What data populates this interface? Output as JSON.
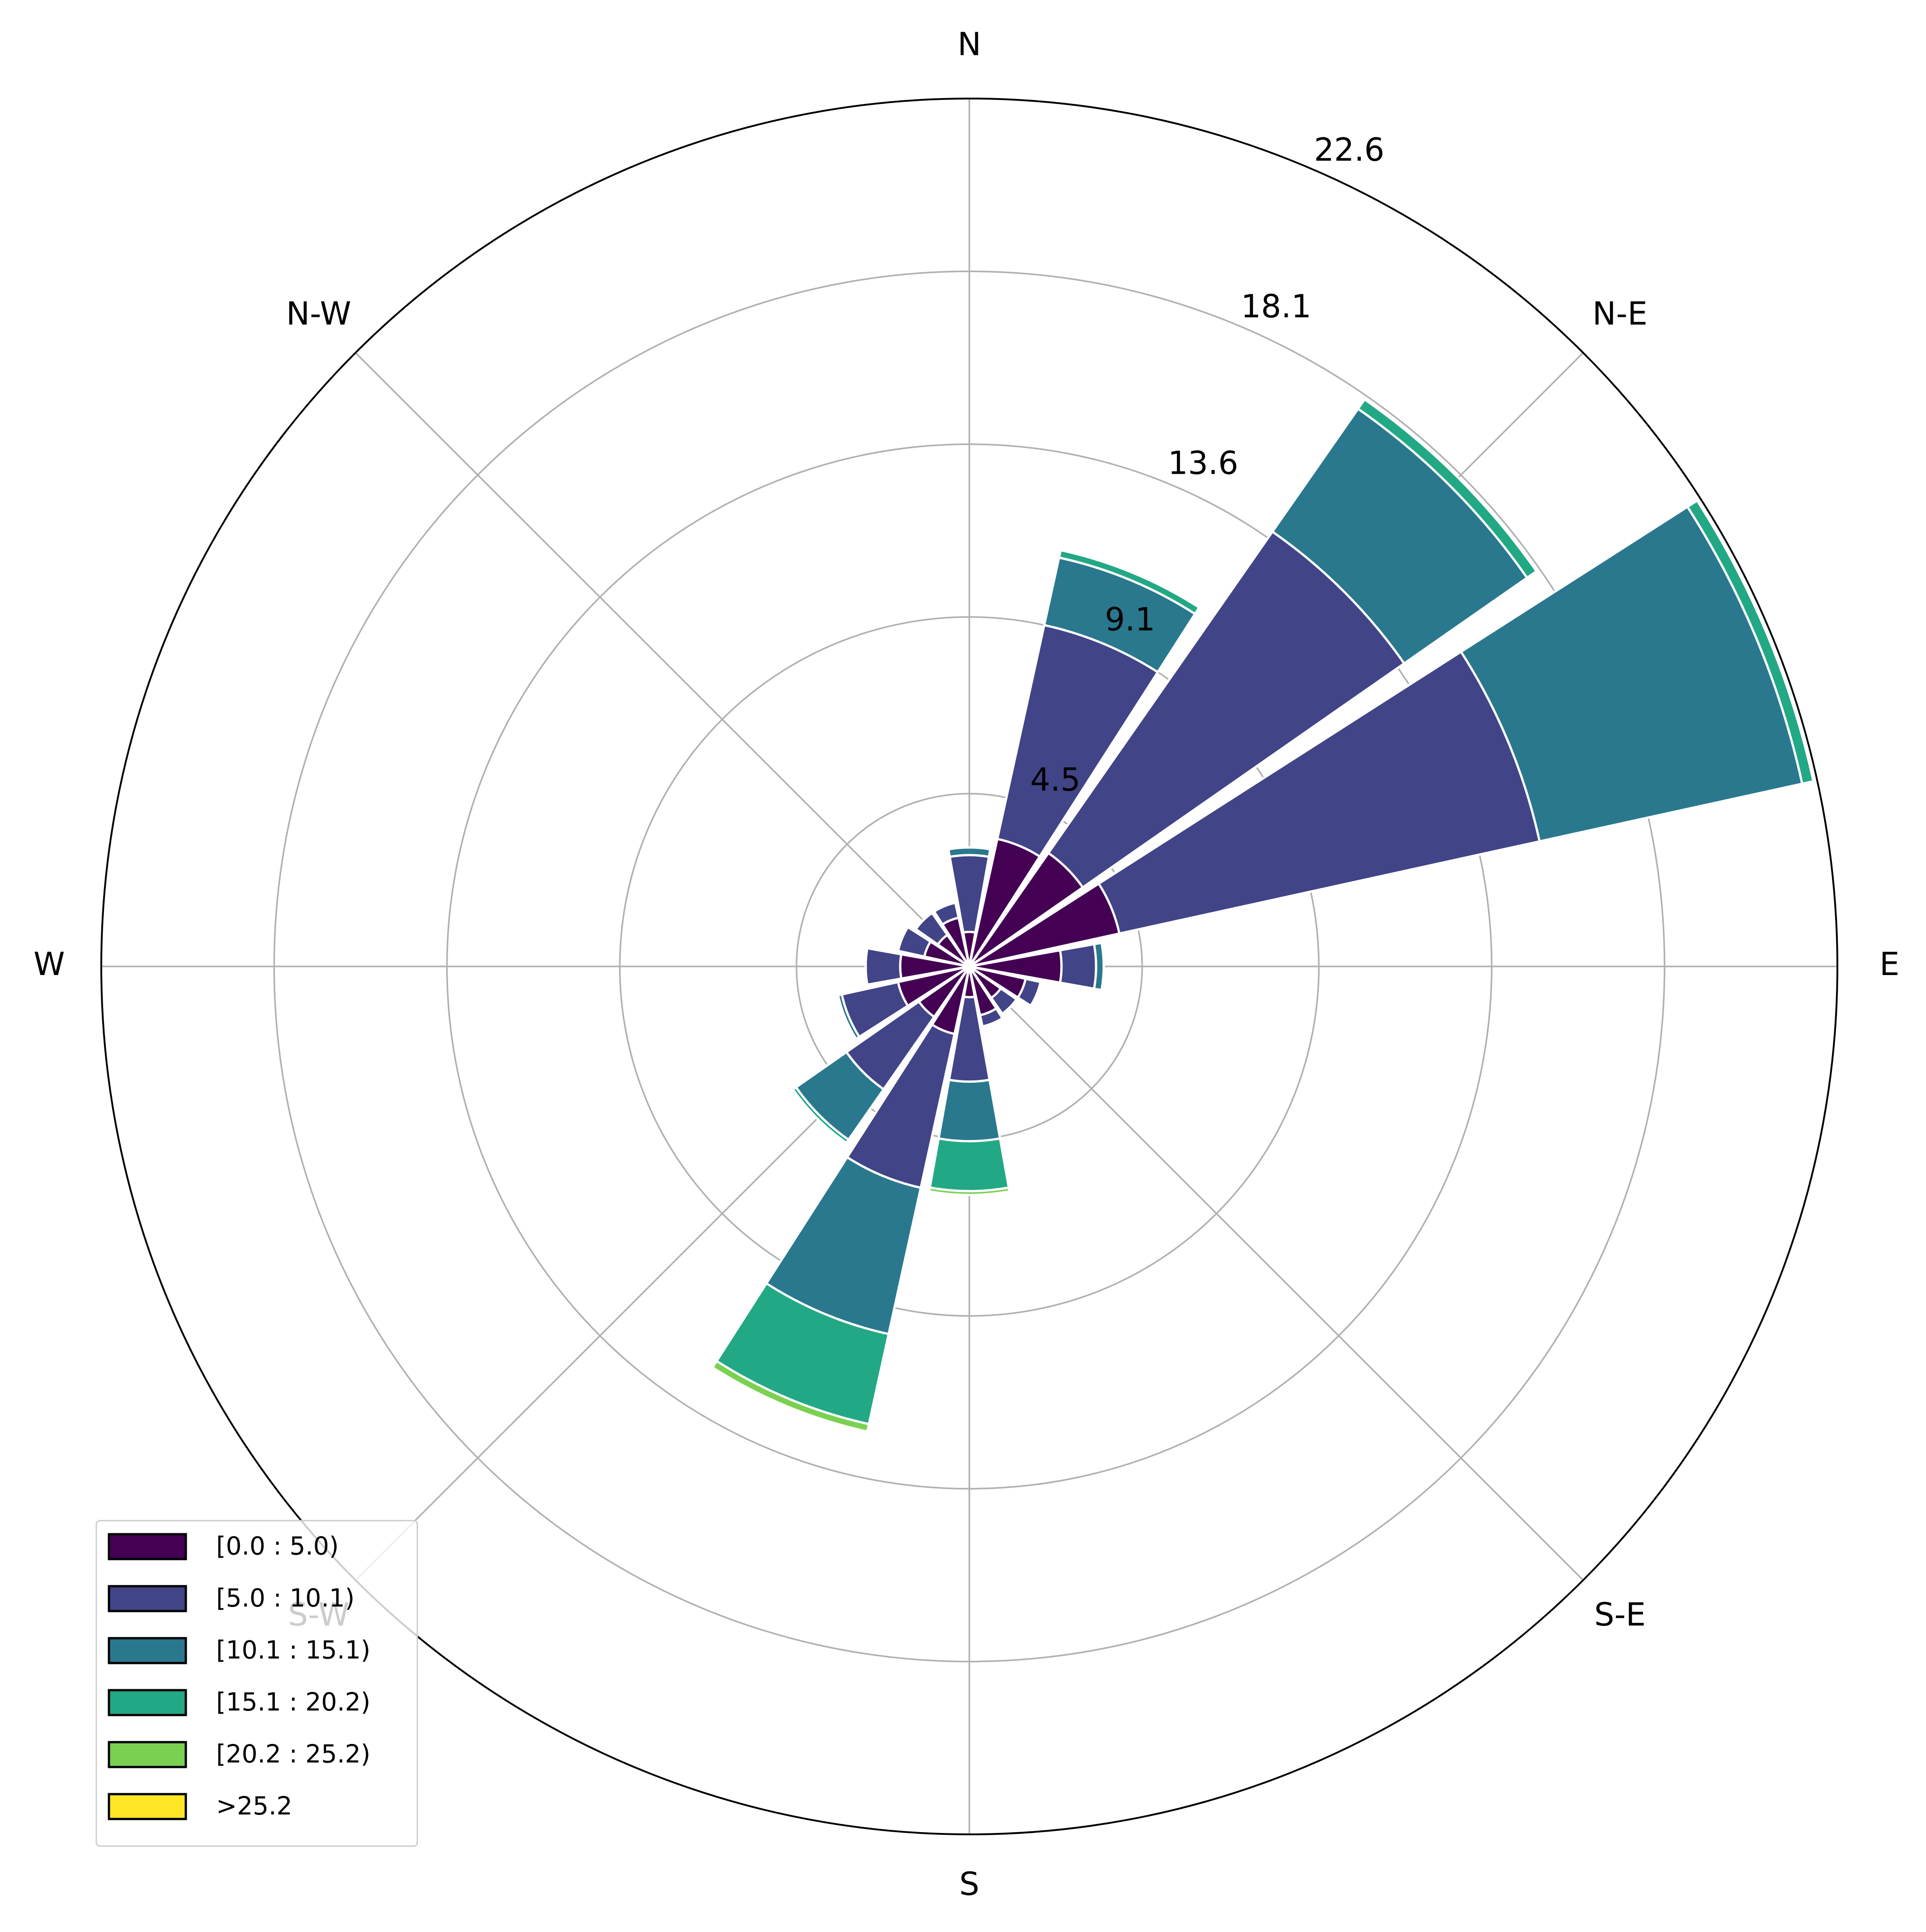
{
  "chart_data": {
    "type": "windrose",
    "categories": [
      "N",
      null,
      "N-E",
      null,
      "E",
      null,
      "S-E",
      null,
      "S",
      null,
      "S-W",
      null,
      "W",
      null,
      "N-W",
      null
    ],
    "series": [
      {
        "name": "[0.0 : 5.0)",
        "color": "#440154",
        "values": [
          0.9,
          3.4,
          3.6,
          4.0,
          2.4,
          1.5,
          1.0,
          1.3,
          0.8,
          1.8,
          1.6,
          1.9,
          1.8,
          1.2,
          1.0,
          1.3
        ]
      },
      {
        "name": "[5.0 : 10.1)",
        "color": "#414487",
        "values": [
          2.0,
          5.7,
          10.2,
          11.2,
          0.9,
          0.4,
          0.5,
          0.3,
          2.2,
          4.1,
          2.3,
          1.5,
          0.9,
          0.7,
          0.7,
          0.4
        ]
      },
      {
        "name": "[10.1 : 15.1)",
        "color": "#2a788e",
        "values": [
          0.2,
          1.8,
          3.9,
          7.0,
          0.2,
          0,
          0,
          0,
          1.55,
          3.9,
          1.6,
          0.1,
          0,
          0,
          0,
          0
        ]
      },
      {
        "name": "[15.1 : 20.2)",
        "color": "#22a884",
        "values": [
          0,
          0.2,
          0.3,
          0.3,
          0,
          0,
          0,
          0,
          1.3,
          2.4,
          0.1,
          0,
          0,
          0,
          0,
          0
        ]
      },
      {
        "name": "[20.2 : 25.2)",
        "color": "#7ad151",
        "values": [
          0,
          0,
          0,
          0,
          0,
          0,
          0,
          0,
          0.1,
          0.2,
          0,
          0,
          0,
          0,
          0,
          0
        ]
      },
      {
        "name": ">25.2",
        "color": "#fde725",
        "values": [
          0,
          0,
          0,
          0,
          0,
          0,
          0,
          0,
          0,
          0,
          0,
          0,
          0,
          0,
          0,
          0
        ]
      }
    ],
    "rlim": [
      0,
      22.6
    ],
    "rticks": [
      4.5,
      9.1,
      13.6,
      18.1,
      22.6
    ],
    "grid": true,
    "legend": "lower left"
  }
}
